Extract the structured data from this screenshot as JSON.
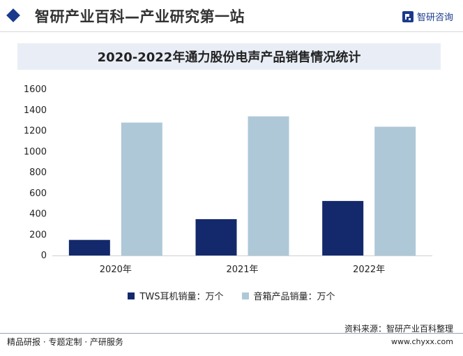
{
  "header": {
    "title": "智研产业百科—产业研究第一站",
    "brand": "智研咨询",
    "accent_color": "#1b3a8c"
  },
  "chart_data": {
    "type": "bar",
    "title": "2020-2022年通力股份电声产品销售情况统计",
    "categories": [
      "2020年",
      "2021年",
      "2022年"
    ],
    "series": [
      {
        "name": "TWS耳机销量：万个",
        "values": [
          150,
          350,
          525
        ],
        "color": "#13296b"
      },
      {
        "name": "音箱产品销量：万个",
        "values": [
          1280,
          1340,
          1240
        ],
        "color": "#aec8d8"
      }
    ],
    "y_ticks": [
      0,
      200,
      400,
      600,
      800,
      1000,
      1200,
      1400,
      1600
    ],
    "ylim": [
      0,
      1600
    ],
    "xlabel": "",
    "ylabel": "",
    "grid": false,
    "legend_position": "bottom"
  },
  "footer": {
    "source": "资料来源：智研产业百科整理",
    "website": "www.chyxx.com",
    "tagline": "精品研报 · 专题定制 · 产研服务"
  }
}
